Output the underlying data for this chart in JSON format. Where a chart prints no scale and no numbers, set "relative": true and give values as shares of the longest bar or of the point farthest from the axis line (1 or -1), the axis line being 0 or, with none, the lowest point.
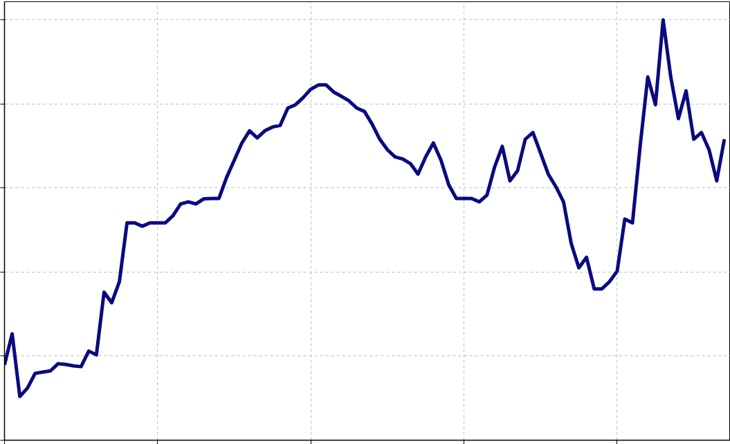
{
  "chart_data": {
    "type": "line",
    "relative": true,
    "grid": true,
    "tick_labels": false,
    "line_style": "solid",
    "categories": [
      null,
      null,
      null,
      null,
      null,
      null,
      null,
      null,
      null,
      null,
      null,
      null,
      null,
      null,
      null,
      null,
      null,
      null,
      null,
      null,
      null,
      null,
      null,
      null,
      null,
      null,
      null,
      null,
      null,
      null,
      null,
      null,
      null,
      null,
      null,
      null,
      null,
      null,
      null,
      null,
      null,
      null,
      null,
      null,
      null,
      null,
      null,
      null,
      null,
      null,
      null,
      null,
      null,
      null,
      null,
      null,
      null,
      null,
      null,
      null,
      null,
      null,
      null,
      null,
      null,
      null,
      null,
      null,
      null,
      null,
      null,
      null,
      null,
      null,
      null,
      null,
      null,
      null,
      null,
      null,
      null,
      null,
      null,
      null,
      null,
      null,
      null,
      null,
      null,
      null,
      null,
      null,
      null,
      null,
      null
    ],
    "series": [
      {
        "color": "#0a0a80",
        "values": [
          0.179,
          0.253,
          0.104,
          0.124,
          0.159,
          0.162,
          0.165,
          0.182,
          0.18,
          0.177,
          0.175,
          0.212,
          0.203,
          0.352,
          0.327,
          0.377,
          0.517,
          0.517,
          0.509,
          0.517,
          0.517,
          0.517,
          0.534,
          0.562,
          0.567,
          0.562,
          0.574,
          0.575,
          0.575,
          0.625,
          0.666,
          0.707,
          0.736,
          0.719,
          0.736,
          0.745,
          0.749,
          0.79,
          0.798,
          0.815,
          0.835,
          0.845,
          0.845,
          0.828,
          0.818,
          0.807,
          0.79,
          0.782,
          0.752,
          0.716,
          0.691,
          0.674,
          0.669,
          0.658,
          0.633,
          0.674,
          0.707,
          0.666,
          0.608,
          0.575,
          0.575,
          0.575,
          0.567,
          0.583,
          0.65,
          0.699,
          0.617,
          0.641,
          0.716,
          0.732,
          0.683,
          0.633,
          0.603,
          0.567,
          0.468,
          0.41,
          0.435,
          0.36,
          0.36,
          0.377,
          0.402,
          0.526,
          0.517,
          0.699,
          0.864,
          0.798,
          1,
          0.864,
          0.765,
          0.831,
          0.716,
          0.732,
          0.691,
          0.617,
          0.716
        ]
      }
    ]
  }
}
